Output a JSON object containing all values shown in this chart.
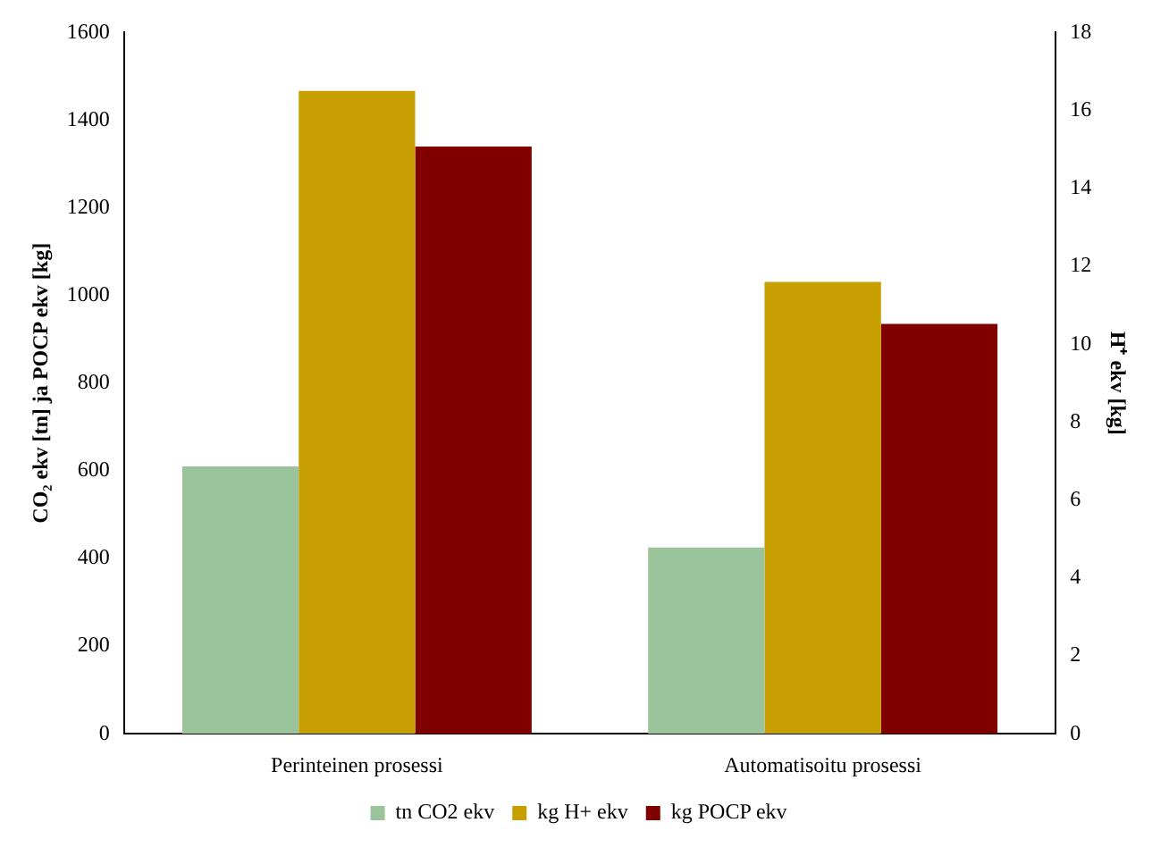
{
  "chart_data": {
    "type": "bar",
    "categories": [
      "Perinteinen prosessi",
      "Automatisoitu prosessi"
    ],
    "series": [
      {
        "name": "tn CO2 ekv",
        "color": "#9cc49c",
        "values": [
          610,
          425
        ]
      },
      {
        "name": "kg H+ ekv",
        "color": "#c89f00",
        "values": [
          16.5,
          11.6
        ],
        "axis": "y2"
      },
      {
        "name": "kg POCP ekv",
        "color": "#800000",
        "values": [
          1340,
          935
        ]
      }
    ],
    "ylabel": "CO₂ ekv [tn] ja POCP ekv [kg]",
    "y2label": "H⁺ ekv [kg]",
    "ylim": [
      0,
      1600
    ],
    "yticks": [
      0,
      200,
      400,
      600,
      800,
      1000,
      1200,
      1400,
      1600
    ],
    "y2lim": [
      0,
      18
    ],
    "y2ticks": [
      0,
      2,
      4,
      6,
      8,
      10,
      12,
      14,
      16,
      18
    ],
    "grid": false,
    "legend": "bottom"
  }
}
